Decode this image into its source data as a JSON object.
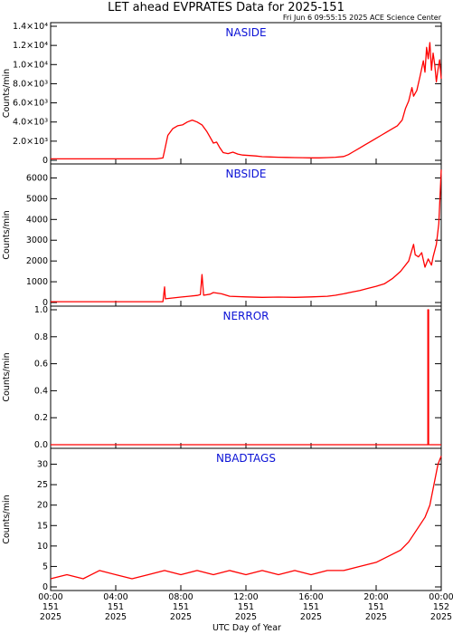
{
  "title": "LET ahead EVPRATES Data for 2025-151",
  "subtitle": "Fri Jun  6 09:55:15 2025 ACE Science Center",
  "xlabel": "UTC Day of Year",
  "colors": {
    "series": "#ff0000",
    "panel_title": "#0b12d6",
    "axes": "#000000"
  },
  "x_ticks": [
    {
      "time": "00:00",
      "day": "151",
      "year": "2025"
    },
    {
      "time": "04:00",
      "day": "151",
      "year": "2025"
    },
    {
      "time": "08:00",
      "day": "151",
      "year": "2025"
    },
    {
      "time": "12:00",
      "day": "151",
      "year": "2025"
    },
    {
      "time": "16:00",
      "day": "151",
      "year": "2025"
    },
    {
      "time": "20:00",
      "day": "151",
      "year": "2025"
    },
    {
      "time": "00:00",
      "day": "152",
      "year": "2025"
    }
  ],
  "chart_data": [
    {
      "type": "line",
      "title": "NASIDE",
      "ylabel": "Counts/min",
      "xlabel": "UTC Day of Year",
      "xlim_hours": [
        0,
        24
      ],
      "ylim": [
        0,
        14000
      ],
      "y_ticks": [
        {
          "value": 0,
          "label": "0"
        },
        {
          "value": 2000,
          "label": "2.0×10³"
        },
        {
          "value": 4000,
          "label": "4.0×10³"
        },
        {
          "value": 6000,
          "label": "6.0×10³"
        },
        {
          "value": 8000,
          "label": "8.0×10³"
        },
        {
          "value": 10000,
          "label": "1.0×10⁴"
        },
        {
          "value": 12000,
          "label": "1.2×10⁴"
        },
        {
          "value": 14000,
          "label": "1.4×10⁴"
        }
      ],
      "points": [
        [
          0,
          150
        ],
        [
          6.5,
          150
        ],
        [
          6.9,
          250
        ],
        [
          7.0,
          1000
        ],
        [
          7.2,
          2600
        ],
        [
          7.5,
          3300
        ],
        [
          7.8,
          3600
        ],
        [
          8.1,
          3700
        ],
        [
          8.4,
          4000
        ],
        [
          8.7,
          4200
        ],
        [
          9.0,
          4000
        ],
        [
          9.3,
          3700
        ],
        [
          9.6,
          3000
        ],
        [
          9.8,
          2400
        ],
        [
          10.0,
          1800
        ],
        [
          10.2,
          1900
        ],
        [
          10.4,
          1300
        ],
        [
          10.6,
          800
        ],
        [
          10.9,
          700
        ],
        [
          11.2,
          850
        ],
        [
          11.5,
          650
        ],
        [
          11.8,
          550
        ],
        [
          12.2,
          500
        ],
        [
          12.6,
          450
        ],
        [
          13.0,
          380
        ],
        [
          13.5,
          350
        ],
        [
          14.0,
          320
        ],
        [
          14.5,
          300
        ],
        [
          15.0,
          280
        ],
        [
          15.5,
          270
        ],
        [
          16.0,
          260
        ],
        [
          16.5,
          260
        ],
        [
          17.0,
          280
        ],
        [
          17.5,
          320
        ],
        [
          18.0,
          400
        ],
        [
          18.3,
          600
        ],
        [
          18.6,
          900
        ],
        [
          19.0,
          1300
        ],
        [
          19.3,
          1600
        ],
        [
          19.6,
          1900
        ],
        [
          20.0,
          2300
        ],
        [
          20.3,
          2600
        ],
        [
          20.6,
          2900
        ],
        [
          21.0,
          3300
        ],
        [
          21.3,
          3600
        ],
        [
          21.6,
          4200
        ],
        [
          21.8,
          5400
        ],
        [
          22.0,
          6200
        ],
        [
          22.2,
          7600
        ],
        [
          22.3,
          6700
        ],
        [
          22.5,
          7300
        ],
        [
          22.7,
          8800
        ],
        [
          22.9,
          10400
        ],
        [
          23.0,
          9200
        ],
        [
          23.1,
          11800
        ],
        [
          23.2,
          10600
        ],
        [
          23.3,
          12300
        ],
        [
          23.4,
          9400
        ],
        [
          23.5,
          11200
        ],
        [
          23.6,
          10000
        ],
        [
          23.7,
          8200
        ],
        [
          23.8,
          9500
        ],
        [
          23.9,
          10500
        ],
        [
          24.0,
          8500
        ]
      ]
    },
    {
      "type": "line",
      "title": "NBSIDE",
      "ylabel": "Counts/min",
      "xlabel": "UTC Day of Year",
      "xlim_hours": [
        0,
        24
      ],
      "ylim": [
        0,
        6500
      ],
      "y_ticks": [
        {
          "value": 0,
          "label": "0"
        },
        {
          "value": 1000,
          "label": "1000"
        },
        {
          "value": 2000,
          "label": "2000"
        },
        {
          "value": 3000,
          "label": "3000"
        },
        {
          "value": 4000,
          "label": "4000"
        },
        {
          "value": 5000,
          "label": "5000"
        },
        {
          "value": 6000,
          "label": "6000"
        }
      ],
      "points": [
        [
          0,
          40
        ],
        [
          6.9,
          40
        ],
        [
          7.0,
          750
        ],
        [
          7.05,
          180
        ],
        [
          7.5,
          220
        ],
        [
          8.0,
          260
        ],
        [
          8.5,
          300
        ],
        [
          9.0,
          340
        ],
        [
          9.2,
          380
        ],
        [
          9.3,
          1350
        ],
        [
          9.4,
          350
        ],
        [
          9.8,
          400
        ],
        [
          10.0,
          480
        ],
        [
          10.5,
          420
        ],
        [
          11.0,
          300
        ],
        [
          12.0,
          270
        ],
        [
          13.0,
          250
        ],
        [
          14.0,
          260
        ],
        [
          15.0,
          250
        ],
        [
          16.0,
          270
        ],
        [
          17.0,
          300
        ],
        [
          17.5,
          350
        ],
        [
          18.0,
          420
        ],
        [
          18.5,
          500
        ],
        [
          19.0,
          580
        ],
        [
          19.5,
          680
        ],
        [
          20.0,
          780
        ],
        [
          20.5,
          900
        ],
        [
          21.0,
          1150
        ],
        [
          21.5,
          1500
        ],
        [
          22.0,
          2000
        ],
        [
          22.3,
          2800
        ],
        [
          22.4,
          2300
        ],
        [
          22.6,
          2200
        ],
        [
          22.8,
          2400
        ],
        [
          23.0,
          1700
        ],
        [
          23.2,
          2100
        ],
        [
          23.4,
          1800
        ],
        [
          23.5,
          2200
        ],
        [
          23.7,
          2800
        ],
        [
          23.85,
          3800
        ],
        [
          24.0,
          6400
        ]
      ]
    },
    {
      "type": "line",
      "title": "NERROR",
      "ylabel": "Counts/min",
      "xlabel": "UTC Day of Year",
      "xlim_hours": [
        0,
        24
      ],
      "ylim": [
        0,
        1
      ],
      "y_ticks": [
        {
          "value": 0,
          "label": "0.0"
        },
        {
          "value": 0.2,
          "label": "0.2"
        },
        {
          "value": 0.4,
          "label": "0.4"
        },
        {
          "value": 0.6,
          "label": "0.6"
        },
        {
          "value": 0.8,
          "label": "0.8"
        },
        {
          "value": 1.0,
          "label": "1.0"
        }
      ],
      "points": [
        [
          0,
          0
        ],
        [
          23.18,
          0
        ],
        [
          23.18,
          1.0
        ],
        [
          23.22,
          1.0
        ],
        [
          23.22,
          0
        ],
        [
          24,
          0
        ]
      ]
    },
    {
      "type": "line",
      "title": "NBADTAGS",
      "ylabel": "Counts/min",
      "xlabel": "UTC Day of Year",
      "xlim_hours": [
        0,
        24
      ],
      "ylim": [
        0,
        33
      ],
      "y_ticks": [
        {
          "value": 0,
          "label": "0"
        },
        {
          "value": 5,
          "label": "5"
        },
        {
          "value": 10,
          "label": "10"
        },
        {
          "value": 15,
          "label": "15"
        },
        {
          "value": 20,
          "label": "20"
        },
        {
          "value": 25,
          "label": "25"
        },
        {
          "value": 30,
          "label": "30"
        }
      ],
      "points": [
        [
          0,
          2
        ],
        [
          1,
          3
        ],
        [
          2,
          2
        ],
        [
          3,
          4
        ],
        [
          4,
          3
        ],
        [
          5,
          2
        ],
        [
          6,
          3
        ],
        [
          7,
          4
        ],
        [
          8,
          3
        ],
        [
          9,
          4
        ],
        [
          10,
          3
        ],
        [
          11,
          4
        ],
        [
          12,
          3
        ],
        [
          13,
          4
        ],
        [
          14,
          3
        ],
        [
          15,
          4
        ],
        [
          16,
          3
        ],
        [
          17,
          4
        ],
        [
          18,
          4
        ],
        [
          19,
          5
        ],
        [
          20,
          6
        ],
        [
          20.5,
          7
        ],
        [
          21,
          8
        ],
        [
          21.5,
          9
        ],
        [
          22,
          11
        ],
        [
          22.5,
          14
        ],
        [
          23,
          17
        ],
        [
          23.3,
          20
        ],
        [
          23.6,
          26
        ],
        [
          23.8,
          30
        ],
        [
          24,
          32
        ]
      ]
    }
  ]
}
